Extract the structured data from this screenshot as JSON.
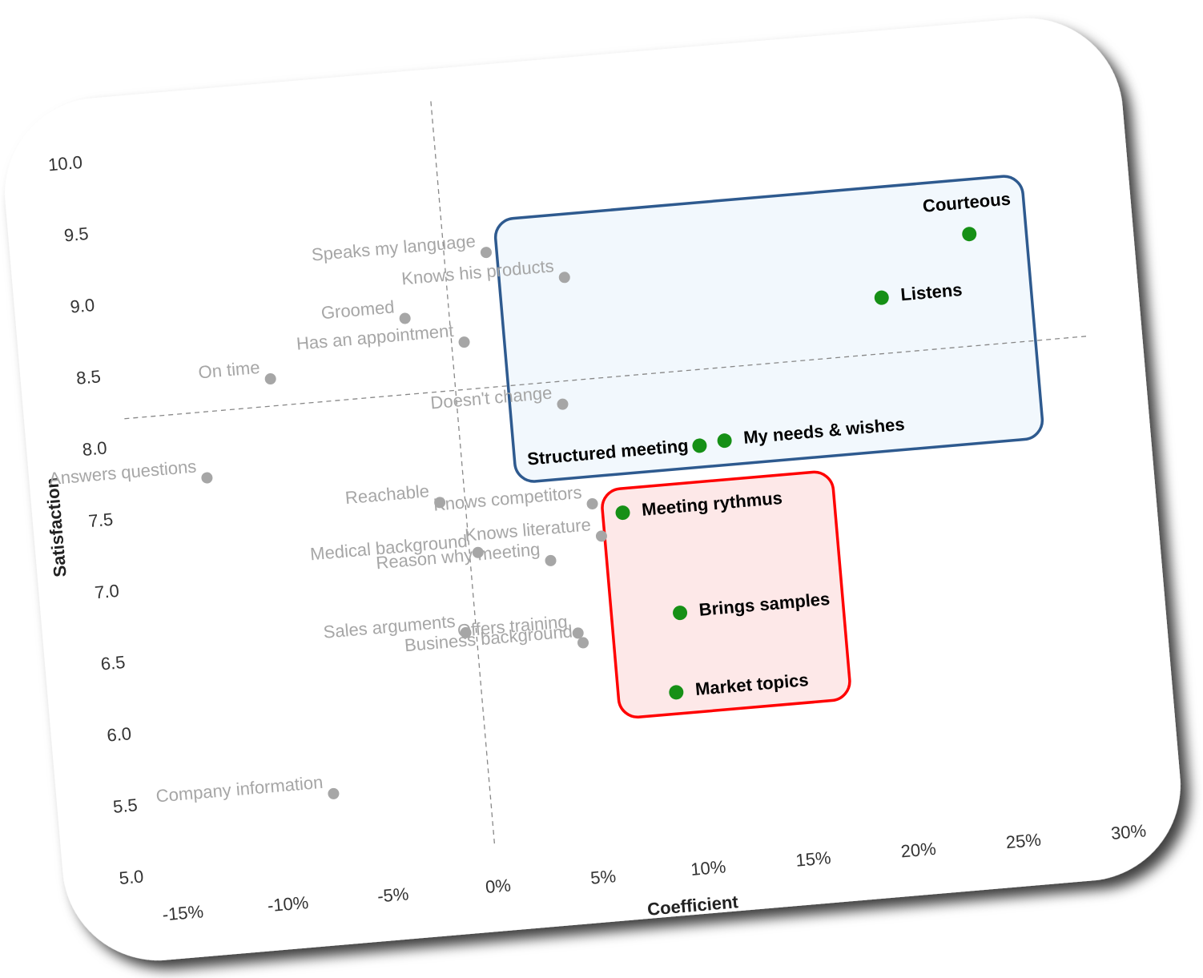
{
  "chart_data": {
    "type": "scatter",
    "x_label": "Coefficient",
    "y_label": "Satisfaction",
    "xlim": [
      -15,
      30
    ],
    "ylim": [
      5,
      10
    ],
    "xticks": [
      {
        "value": -15,
        "label": "-15%"
      },
      {
        "value": -10,
        "label": "-10%"
      },
      {
        "value": -5,
        "label": "-5%"
      },
      {
        "value": 0,
        "label": "0%"
      },
      {
        "value": 5,
        "label": "5%"
      },
      {
        "value": 10,
        "label": "10%"
      },
      {
        "value": 15,
        "label": "15%"
      },
      {
        "value": 20,
        "label": "20%"
      },
      {
        "value": 25,
        "label": "25%"
      },
      {
        "value": 30,
        "label": "30%"
      }
    ],
    "yticks": [
      {
        "value": 5,
        "label": "5.0"
      },
      5.5,
      {
        "value": 6,
        "label": "6.0"
      },
      6.5,
      {
        "value": 7,
        "label": "7.0"
      },
      7.5,
      {
        "value": 8,
        "label": "8.0"
      },
      8.5,
      {
        "value": 9,
        "label": "9.0"
      },
      9.5,
      {
        "value": 10,
        "label": "10.0"
      }
    ],
    "negative_tick_color": "#ff0000",
    "x_reference": 0,
    "y_reference": 8.2,
    "series": [
      {
        "color": "#a6a6a6",
        "label_color": "#a6a6a6",
        "labels": [
          "Speaks my language",
          "Knows his products",
          "Groomed",
          "Has an appointment",
          "On time",
          "Doesn't change",
          "Answers questions",
          "Reachable",
          "Knows competitors",
          "Knows literature",
          "Medical background",
          "Reason why meeting",
          "Offers training",
          "Business background",
          "Sales arguments",
          "Company information"
        ],
        "x": [
          2.0,
          5.6,
          -2.1,
          0.6,
          -8.7,
          5.0,
          -12.1,
          -1.2,
          6.0,
          6.3,
          0.4,
          3.8,
          4.8,
          5.0,
          -0.5,
          -7.4
        ],
        "values": [
          9.14,
          8.92,
          8.73,
          8.53,
          8.39,
          8.04,
          7.74,
          7.43,
          7.33,
          7.1,
          7.06,
          6.96,
          6.44,
          6.37,
          6.51,
          5.47
        ]
      },
      {
        "color": "#169016",
        "label_color": "#000000",
        "outline": "#2e5a8f",
        "fill": "#f2f8fd",
        "labels": [
          "Courteous",
          "Listens",
          "My needs & wishes",
          "Structured meeting"
        ],
        "x": [
          24.9,
          20.5,
          12.5,
          11.3
        ],
        "values": [
          8.98,
          8.59,
          7.69,
          7.67
        ]
      },
      {
        "color": "#169016",
        "label_color": "#000000",
        "outline": "#ff0000",
        "fill": "#fde8e8",
        "labels": [
          "Meeting rythmus",
          "Brings samples",
          "Market topics"
        ],
        "x": [
          7.4,
          9.7,
          9.2
        ],
        "values": [
          7.25,
          6.52,
          5.97
        ]
      }
    ]
  }
}
